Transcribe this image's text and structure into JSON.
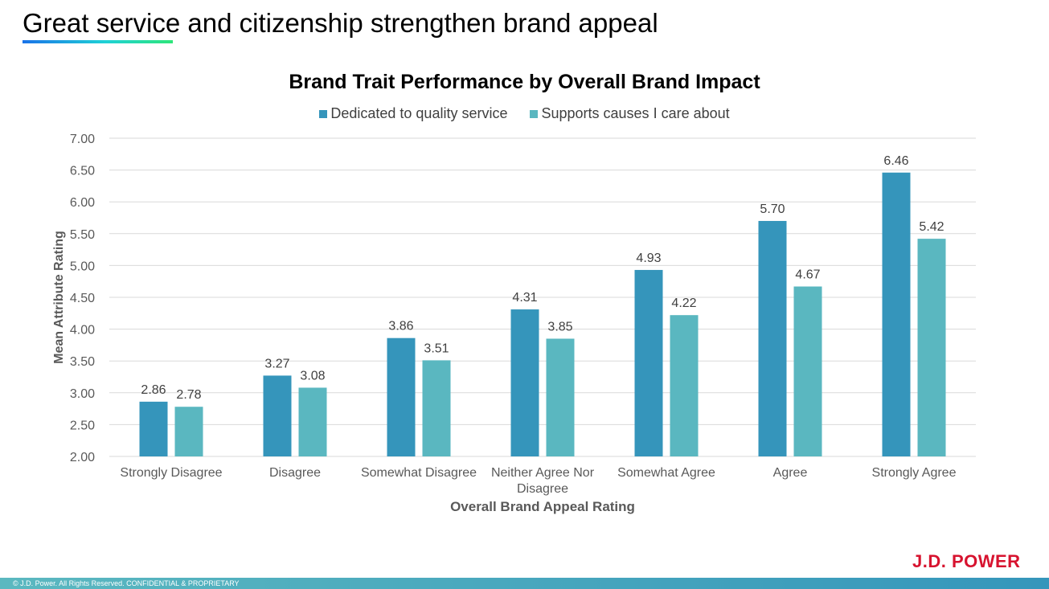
{
  "slide": {
    "title": "Great service and citizenship strengthen brand appeal",
    "footer": "© J.D. Power. All Rights Reserved. CONFIDENTIAL & PROPRIETARY",
    "logo_text": "J.D. POWER",
    "logo_color": "#d7132f"
  },
  "chart_data": {
    "type": "bar",
    "title": "Brand Trait Performance by Overall Brand Impact",
    "xlabel": "Overall Brand Appeal Rating",
    "ylabel": "Mean Attribute Rating",
    "ylim": [
      2.0,
      7.0
    ],
    "yticks": [
      "2.00",
      "2.50",
      "3.00",
      "3.50",
      "4.00",
      "4.50",
      "5.00",
      "5.50",
      "6.00",
      "6.50",
      "7.00"
    ],
    "grid": true,
    "legend_position": "top",
    "categories": [
      [
        "Strongly Disagree"
      ],
      [
        "Disagree"
      ],
      [
        "Somewhat Disagree"
      ],
      [
        "Neither Agree Nor",
        "Disagree"
      ],
      [
        "Somewhat Agree"
      ],
      [
        "Agree"
      ],
      [
        "Strongly Agree"
      ]
    ],
    "series": [
      {
        "name": "Dedicated to quality service",
        "color": "#3595bb",
        "values": [
          2.86,
          3.27,
          3.86,
          4.31,
          4.93,
          5.7,
          6.46
        ],
        "labels": [
          "2.86",
          "3.27",
          "3.86",
          "4.31",
          "4.93",
          "5.70",
          "6.46"
        ]
      },
      {
        "name": "Supports causes I care about",
        "color": "#5ab7c0",
        "values": [
          2.78,
          3.08,
          3.51,
          3.85,
          4.22,
          4.67,
          5.42
        ],
        "labels": [
          "2.78",
          "3.08",
          "3.51",
          "3.85",
          "4.22",
          "4.67",
          "5.42"
        ]
      }
    ]
  }
}
